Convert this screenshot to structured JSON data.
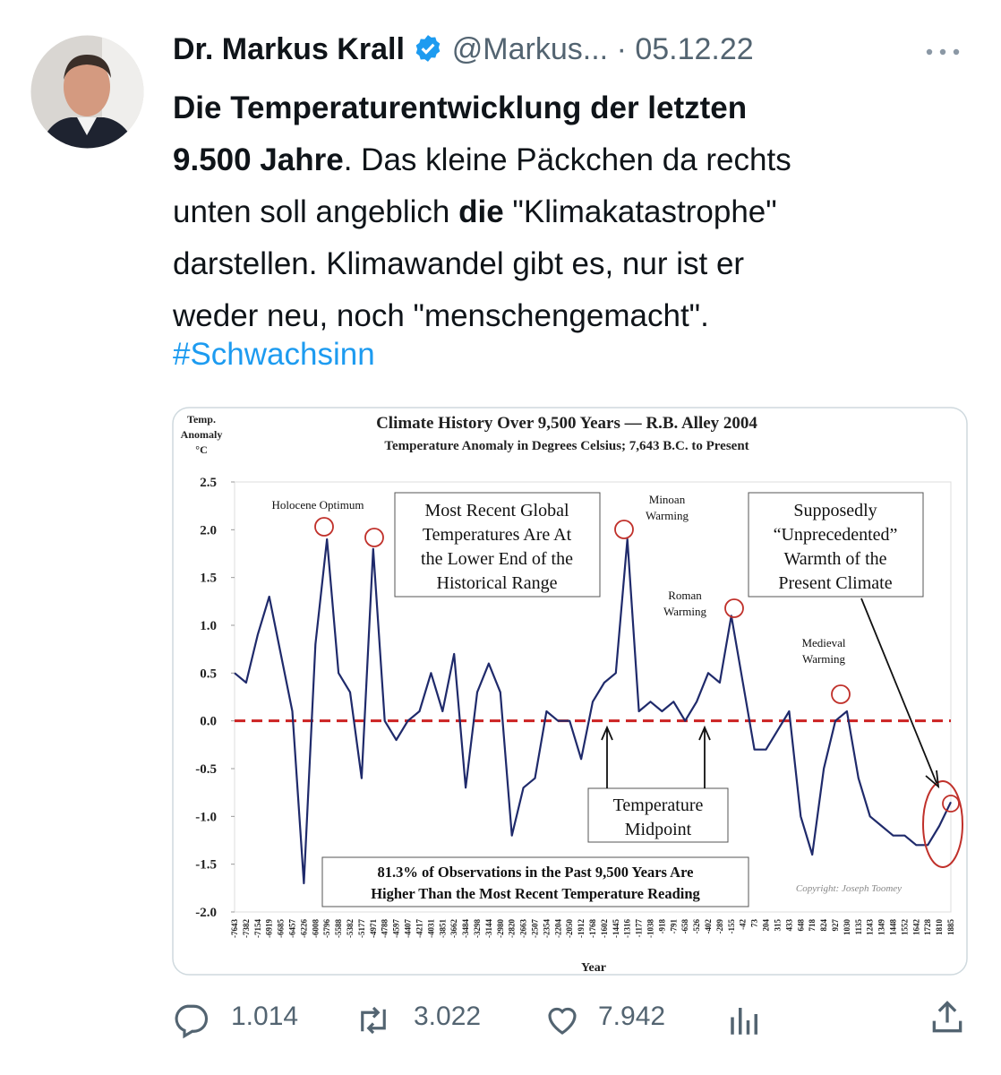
{
  "tweet": {
    "name": "Dr. Markus Krall",
    "handle": "@Markus...",
    "date": "· 05.12.22",
    "body_lines": [
      [
        {
          "text": "Die Temperaturentwicklung der letzten",
          "bold": true
        }
      ],
      [
        {
          "text": "9.500 Jahre",
          "bold": true
        },
        {
          "text": ". Das kleine Päckchen da rechts",
          "bold": false
        }
      ],
      [
        {
          "text": "unten soll angeblich ",
          "bold": false
        },
        {
          "text": "die",
          "bold": true
        },
        {
          "text": " \"Klimakatastrophe\"",
          "bold": false
        }
      ],
      [
        {
          "text": "darstellen. Klimawandel gibt es, nur ist er",
          "bold": false
        }
      ],
      [
        {
          "text": "weder neu, noch \"menschengemacht\".",
          "bold": false
        }
      ]
    ],
    "hashtag": "#Schwachsinn",
    "replies": "1.014",
    "retweets": "3.022",
    "likes": "7.942"
  },
  "chart_data": {
    "type": "line",
    "title": "Climate History Over 9,500 Years — R.B. Alley 2004",
    "subtitle": "Temperature Anomaly in Degrees Celsius; 7,643 B.C. to Present",
    "ylabel": [
      "Temp.",
      "Anomaly",
      "°C"
    ],
    "xlabel": "Year",
    "color": "#1f2a6b",
    "reference_color": "#cc2222",
    "categories": [
      "-7643",
      "-7382",
      "-7154",
      "-6919",
      "-6685",
      "-6457",
      "-6226",
      "-6008",
      "-5796",
      "-5588",
      "-5382",
      "-5177",
      "-4971",
      "-4788",
      "-4597",
      "-4407",
      "-4217",
      "-4031",
      "-3851",
      "-3662",
      "-3484",
      "-3298",
      "-3144",
      "-2980",
      "-2820",
      "-2663",
      "-2507",
      "-2354",
      "-2204",
      "-2050",
      "-1912",
      "-1768",
      "-1602",
      "-1445",
      "-1316",
      "-1177",
      "-1038",
      "-918",
      "-791",
      "-658",
      "-526",
      "-402",
      "-289",
      "-155",
      "-42",
      "73",
      "204",
      "315",
      "433",
      "648",
      "718",
      "824",
      "927",
      "1030",
      "1135",
      "1243",
      "1349",
      "1448",
      "1552",
      "1642",
      "1728",
      "1810",
      "1885"
    ],
    "values": [
      0.5,
      0.4,
      0.9,
      1.3,
      0.7,
      0.1,
      -1.7,
      0.8,
      1.9,
      0.5,
      0.3,
      -0.6,
      1.8,
      0.0,
      -0.2,
      0.0,
      0.1,
      0.5,
      0.1,
      0.7,
      -0.7,
      0.3,
      0.6,
      0.3,
      -1.2,
      -0.7,
      -0.6,
      0.1,
      0.0,
      0.0,
      -0.4,
      0.2,
      0.4,
      0.5,
      1.9,
      0.1,
      0.2,
      0.1,
      0.2,
      0.0,
      0.2,
      0.5,
      0.4,
      1.1,
      0.4,
      -0.3,
      -0.3,
      -0.1,
      0.1,
      -1.0,
      -1.4,
      -0.5,
      0.0,
      0.1,
      -0.6,
      -1.0,
      -1.1,
      -1.2,
      -1.2,
      -1.3,
      -1.3,
      -1.1,
      -0.85
    ],
    "ylim": [
      -2.0,
      2.5
    ],
    "yticks": [
      {
        "value": 2.5,
        "label": "2.5"
      },
      {
        "value": 2.0,
        "label": "2.0"
      },
      {
        "value": 1.5,
        "label": "1.5"
      },
      {
        "value": 1.0,
        "label": "1.0"
      },
      {
        "value": 0.5,
        "label": "0.5"
      },
      {
        "value": 0,
        "label": "0.0"
      },
      {
        "value": -0.5,
        "label": "-0.5"
      },
      {
        "value": -1.0,
        "label": "-1.0"
      },
      {
        "value": -1.5,
        "label": "-1.5"
      },
      {
        "value": -2.0,
        "label": "-2.0"
      }
    ],
    "annotations": [
      [
        "Holocene Optimum"
      ],
      [
        "Most Recent Global",
        "Temperatures Are At",
        "the Lower End of the",
        "Historical Range"
      ],
      [
        "Minoan",
        "Warming"
      ],
      [
        "Roman",
        "Warming"
      ],
      [
        "Supposedly",
        "“Unprecedented”",
        "Warmth of the",
        "Present Climate"
      ],
      [
        "Medieval",
        "Warming"
      ],
      [
        "Temperature",
        "Midpoint"
      ],
      [
        "81.3% of Observations in the Past 9,500 Years Are",
        "Higher Than the Most Recent Temperature Reading"
      ],
      [
        "Copyright: Joseph Toomey"
      ]
    ]
  }
}
